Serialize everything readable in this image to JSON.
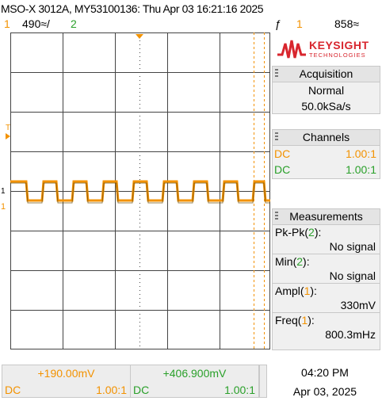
{
  "header": {
    "title": "MSO-X 3012A, MY53100136: Thu Apr 03 16:21:16 2025",
    "ch1_num": "1",
    "ch1_scale": "490≈/",
    "ch2_num": "2",
    "trigger_symbol": "ƒ",
    "trigger_ch": "1",
    "trigger_level": "858≈"
  },
  "logo": {
    "name": "KEYSIGHT",
    "sub": "TECHNOLOGIES"
  },
  "acquisition": {
    "title": "Acquisition",
    "mode": "Normal",
    "rate": "50.0kSa/s"
  },
  "channels": {
    "title": "Channels",
    "ch1": {
      "coupling": "DC",
      "probe": "1.00:1"
    },
    "ch2": {
      "coupling": "DC",
      "probe": "1.00:1"
    }
  },
  "measurements": {
    "title": "Measurements",
    "items": [
      {
        "name": "Pk-Pk",
        "ch": "2",
        "value": "No signal"
      },
      {
        "name": "Min",
        "ch": "2",
        "value": "No signal"
      },
      {
        "name": "Ampl",
        "ch": "1",
        "value": "330mV"
      },
      {
        "name": "Freq",
        "ch": "1",
        "value": "800.3mHz"
      }
    ]
  },
  "bottom": {
    "ch1": {
      "offset": "+190.00mV",
      "coupling": "DC",
      "probe": "1.00:1"
    },
    "ch2": {
      "offset": "+406.900mV",
      "coupling": "DC",
      "probe": "1.00:1"
    },
    "time": "04:20 PM",
    "date": "Apr 03, 2025"
  },
  "screen_markers": {
    "trigger_marker": "T",
    "ch1_marker": "1"
  },
  "colors": {
    "ch1": "#f39200",
    "ch2": "#2aa02a",
    "keysight": "#d8262e"
  }
}
